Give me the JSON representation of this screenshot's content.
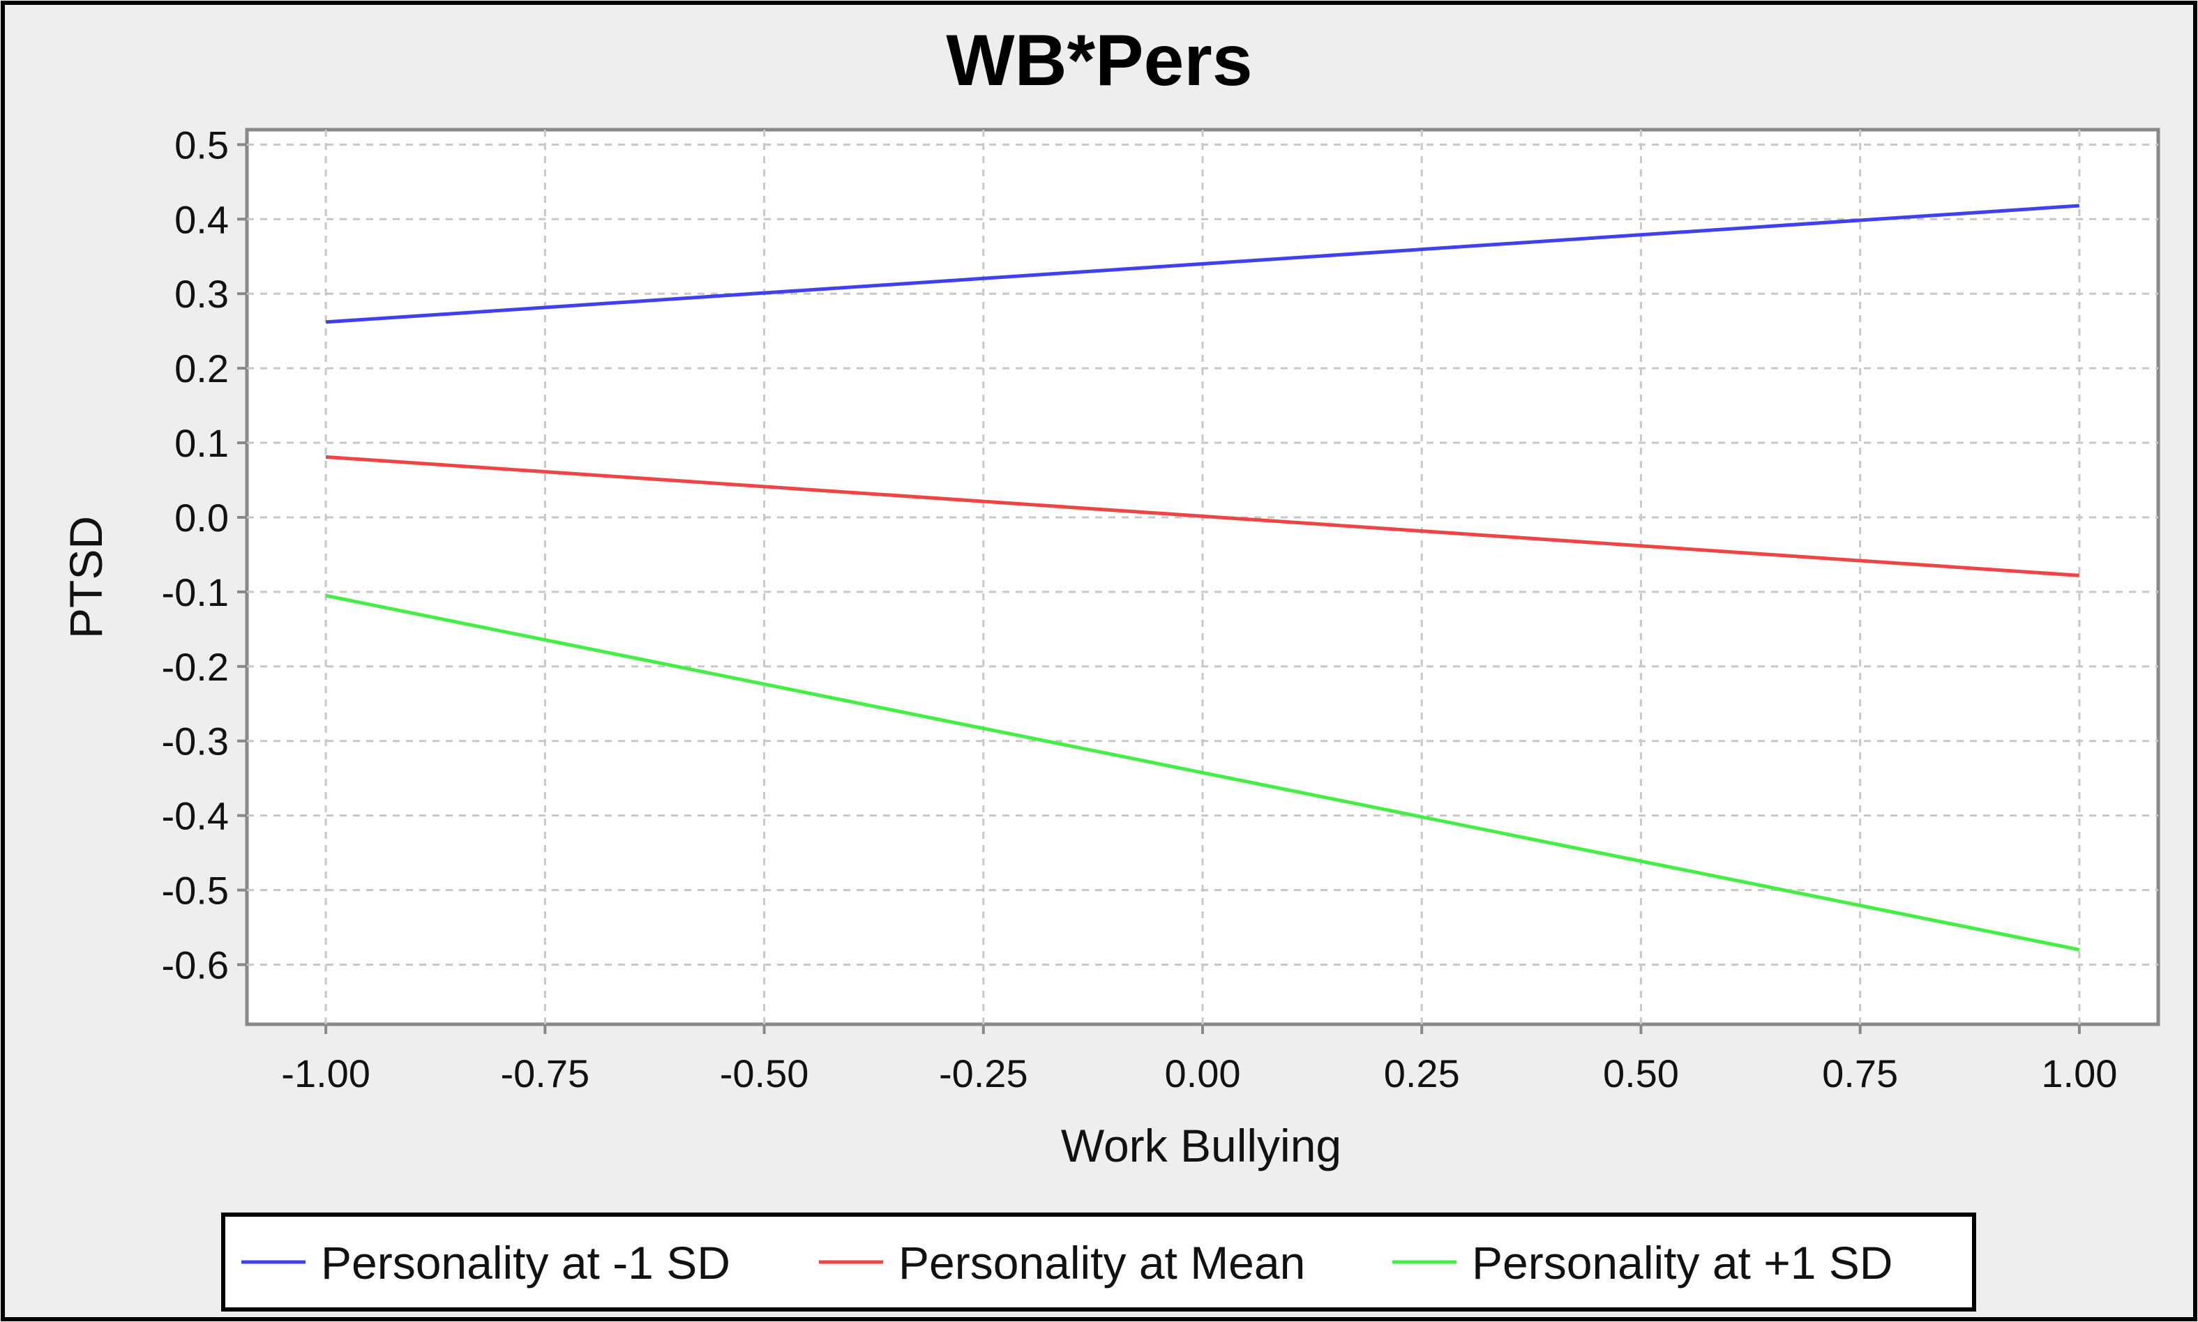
{
  "chart_data": {
    "type": "line",
    "title": "WB*Pers",
    "xlabel": "Work Bullying",
    "ylabel": "PTSD",
    "x": [
      -1.0,
      1.0
    ],
    "xlim": [
      -1.09,
      1.09
    ],
    "ylim": [
      -0.68,
      0.52
    ],
    "xticks": [
      -1.0,
      -0.75,
      -0.5,
      -0.25,
      0.0,
      0.25,
      0.5,
      0.75,
      1.0
    ],
    "xtick_labels": [
      "-1.00",
      "-0.75",
      "-0.50",
      "-0.25",
      "0.00",
      "0.25",
      "0.50",
      "0.75",
      "1.00"
    ],
    "yticks": [
      0.5,
      0.4,
      0.3,
      0.2,
      0.1,
      0.0,
      -0.1,
      -0.2,
      -0.3,
      -0.4,
      -0.5,
      -0.6
    ],
    "ytick_labels": [
      "0.5",
      "0.4",
      "0.3",
      "0.2",
      "0.1",
      "0.0",
      "-0.1",
      "-0.2",
      "-0.3",
      "-0.4",
      "-0.5",
      "-0.6"
    ],
    "grid": true,
    "legend_position": "bottom",
    "series": [
      {
        "name": "Personality at -1 SD",
        "values": [
          0.262,
          0.418
        ],
        "color": "#4040ee"
      },
      {
        "name": "Personality at Mean",
        "values": [
          0.081,
          -0.078
        ],
        "color": "#ee4444"
      },
      {
        "name": "Personality at +1 SD",
        "values": [
          -0.105,
          -0.58
        ],
        "color": "#44ee44"
      }
    ]
  },
  "colors": {
    "background": "#eeeeee",
    "plot_background": "#ffffff",
    "gridline": "#c8c8c8",
    "axis": "#888888"
  }
}
